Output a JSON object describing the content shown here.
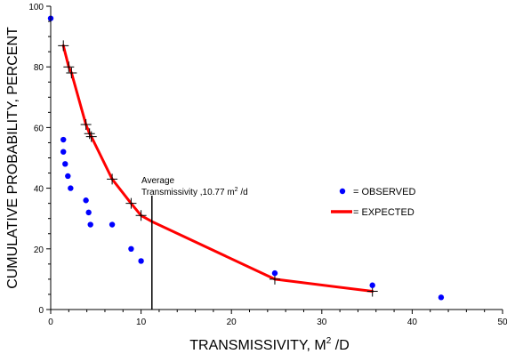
{
  "chart_data": {
    "type": "scatter",
    "xlabel_main": "TRANSMISSIVITY, M",
    "xlabel_sup": "2",
    "xlabel_tail": " /D",
    "ylabel": "CUMULATIVE PROBABILITY, PERCENT",
    "xlim": [
      0,
      50
    ],
    "ylim": [
      0,
      100
    ],
    "xticks": [
      0,
      10,
      20,
      30,
      40,
      50
    ],
    "yticks": [
      0,
      20,
      40,
      60,
      80,
      100
    ],
    "annotation": {
      "line1": "Average",
      "line2_main": "Transmissivity  ,10.77 m",
      "line2_sup": "2",
      "line2_tail": " /d",
      "x": 11.2
    },
    "legend": {
      "placement": "right",
      "observed_label": "= OBSERVED",
      "expected_label": "= EXPECTED"
    },
    "colors": {
      "observed": "#0000ff",
      "expected": "#ff0000",
      "axis": "#000000"
    },
    "series": [
      {
        "name": "= OBSERVED",
        "points": [
          [
            0,
            96
          ],
          [
            1.4,
            56
          ],
          [
            1.4,
            52
          ],
          [
            1.6,
            48
          ],
          [
            1.9,
            44
          ],
          [
            2.2,
            40
          ],
          [
            3.9,
            36
          ],
          [
            4.2,
            32
          ],
          [
            4.4,
            28
          ],
          [
            6.8,
            28
          ],
          [
            8.9,
            20
          ],
          [
            10,
            16
          ],
          [
            24.8,
            12
          ],
          [
            35.6,
            8
          ],
          [
            43.2,
            4
          ]
        ]
      },
      {
        "name": "= EXPECTED",
        "points": [
          [
            1.4,
            87
          ],
          [
            2.0,
            80
          ],
          [
            2.3,
            78
          ],
          [
            3.9,
            61
          ],
          [
            4.3,
            58
          ],
          [
            4.5,
            57
          ],
          [
            6.8,
            43
          ],
          [
            8.9,
            35
          ],
          [
            10,
            31
          ],
          [
            11.2,
            29
          ],
          [
            24.8,
            10
          ],
          [
            35.6,
            6
          ]
        ]
      }
    ]
  }
}
